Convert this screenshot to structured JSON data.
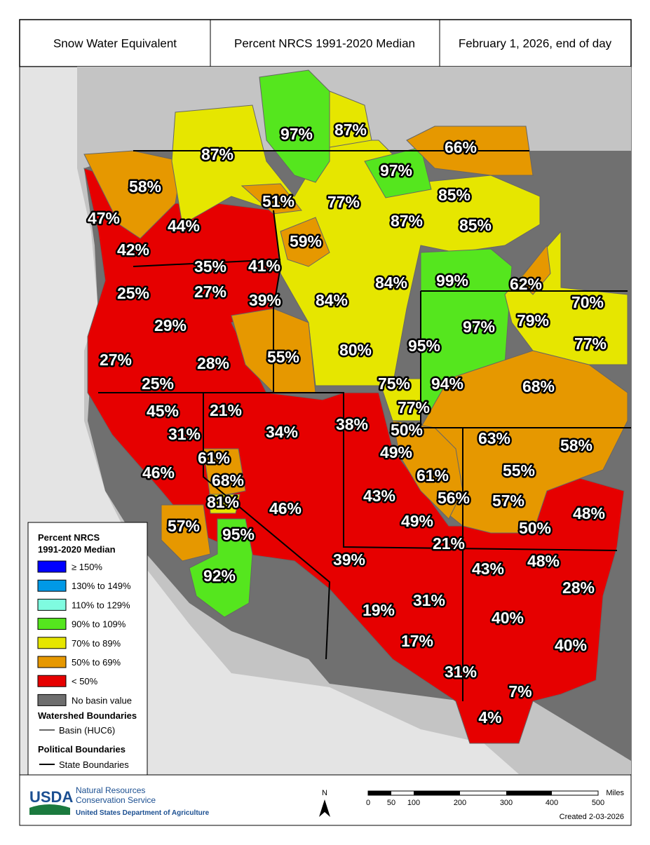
{
  "header": [
    "Snow Water Equivalent",
    "Percent NRCS 1991-2020 Median",
    "February 1, 2026, end of day"
  ],
  "basins": [
    "97%",
    "87%",
    "66%",
    "87%",
    "97%",
    "58%",
    "51%",
    "77%",
    "85%",
    "47%",
    "44%",
    "87%",
    "85%",
    "59%",
    "42%",
    "35%",
    "41%",
    "84%",
    "99%",
    "62%",
    "25%",
    "27%",
    "39%",
    "84%",
    "70%",
    "79%",
    "29%",
    "97%",
    "95%",
    "77%",
    "80%",
    "27%",
    "28%",
    "55%",
    "75%",
    "94%",
    "68%",
    "25%",
    "45%",
    "21%",
    "77%",
    "50%",
    "38%",
    "34%",
    "63%",
    "58%",
    "31%",
    "49%",
    "61%",
    "68%",
    "46%",
    "61%",
    "55%",
    "43%",
    "56%",
    "57%",
    "81%",
    "46%",
    "48%",
    "49%",
    "57%",
    "50%",
    "95%",
    "21%",
    "39%",
    "48%",
    "43%",
    "92%",
    "28%",
    "19%",
    "31%",
    "40%",
    "17%",
    "40%",
    "31%",
    "7%",
    "4%"
  ],
  "legend": {
    "title": [
      "Percent NRCS",
      "1991-2020 Median"
    ],
    "items": [
      "≥ 150%",
      "130% to 149%",
      "110% to 129%",
      "90% to 109%",
      "70% to 89%",
      "50% to 69%",
      "< 50%",
      "No basin value"
    ],
    "watershed_title": "Watershed Boundaries",
    "watershed_item": "Basin (HUC6)",
    "political_title": "Political Boundaries",
    "political_item": "State Boundaries"
  },
  "footer": {
    "logo": "USDA",
    "agency": [
      "Natural Resources",
      "Conservation Service"
    ],
    "department": "United States Department of Agriculture",
    "north": "N",
    "scale_labels": [
      "0",
      "50",
      "100",
      "200",
      "300",
      "400",
      "500"
    ],
    "scale_unit": "Miles",
    "created": "Created 2-03-2026"
  }
}
